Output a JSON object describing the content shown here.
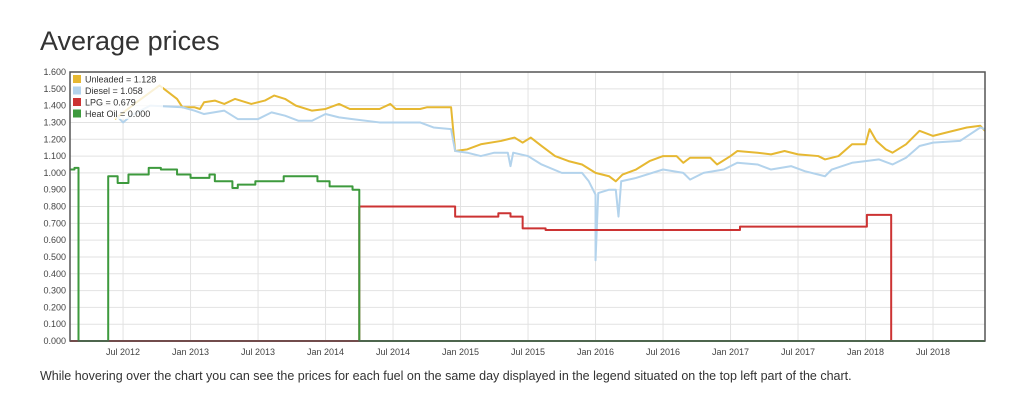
{
  "title": "Average prices",
  "caption": "While hovering over the chart you can see the prices for each fuel on the same day displayed in the legend situated on the top left part of the chart.",
  "chart_data": {
    "type": "line",
    "title": "Average prices",
    "xlabel": "",
    "ylabel": "",
    "xlim": [
      2012.107,
      2018.885
    ],
    "ylim": [
      0,
      1.6
    ],
    "grid": true,
    "legend_position": "top-left",
    "yticks": [
      "0.000",
      "0.100",
      "0.200",
      "0.300",
      "0.400",
      "0.500",
      "0.600",
      "0.700",
      "0.800",
      "0.900",
      "1.000",
      "1.100",
      "1.200",
      "1.300",
      "1.400",
      "1.500",
      "1.600"
    ],
    "xticks": [
      {
        "x": 2012.5,
        "label": "Jul 2012"
      },
      {
        "x": 2013.0,
        "label": "Jan 2013"
      },
      {
        "x": 2013.5,
        "label": "Jul 2013"
      },
      {
        "x": 2014.0,
        "label": "Jan 2014"
      },
      {
        "x": 2014.5,
        "label": "Jul 2014"
      },
      {
        "x": 2015.0,
        "label": "Jan 2015"
      },
      {
        "x": 2015.5,
        "label": "Jul 2015"
      },
      {
        "x": 2016.0,
        "label": "Jan 2016"
      },
      {
        "x": 2016.5,
        "label": "Jul 2016"
      },
      {
        "x": 2017.0,
        "label": "Jan 2017"
      },
      {
        "x": 2017.5,
        "label": "Jul 2017"
      },
      {
        "x": 2018.0,
        "label": "Jan 2018"
      },
      {
        "x": 2018.5,
        "label": "Jul 2018"
      }
    ],
    "series": [
      {
        "name": "Unleaded",
        "legend": "Unleaded = 1.128",
        "color": "#e6b832",
        "step": false,
        "points": [
          [
            2012.44,
            1.32
          ],
          [
            2012.6,
            1.42
          ],
          [
            2012.77,
            1.52
          ],
          [
            2012.9,
            1.44
          ],
          [
            2012.94,
            1.39
          ],
          [
            2013.03,
            1.39
          ],
          [
            2013.07,
            1.38
          ],
          [
            2013.1,
            1.42
          ],
          [
            2013.18,
            1.43
          ],
          [
            2013.25,
            1.41
          ],
          [
            2013.33,
            1.44
          ],
          [
            2013.45,
            1.41
          ],
          [
            2013.55,
            1.43
          ],
          [
            2013.62,
            1.46
          ],
          [
            2013.7,
            1.44
          ],
          [
            2013.78,
            1.4
          ],
          [
            2013.9,
            1.37
          ],
          [
            2014.0,
            1.38
          ],
          [
            2014.1,
            1.41
          ],
          [
            2014.18,
            1.38
          ],
          [
            2014.4,
            1.38
          ],
          [
            2014.48,
            1.41
          ],
          [
            2014.52,
            1.38
          ],
          [
            2014.7,
            1.38
          ],
          [
            2014.75,
            1.39
          ],
          [
            2014.93,
            1.39
          ],
          [
            2014.96,
            1.13
          ],
          [
            2015.05,
            1.14
          ],
          [
            2015.15,
            1.17
          ],
          [
            2015.3,
            1.19
          ],
          [
            2015.4,
            1.21
          ],
          [
            2015.46,
            1.18
          ],
          [
            2015.52,
            1.21
          ],
          [
            2015.6,
            1.16
          ],
          [
            2015.7,
            1.1
          ],
          [
            2015.8,
            1.07
          ],
          [
            2015.9,
            1.05
          ],
          [
            2016.0,
            1.0
          ],
          [
            2016.1,
            0.98
          ],
          [
            2016.15,
            0.95
          ],
          [
            2016.2,
            0.99
          ],
          [
            2016.3,
            1.02
          ],
          [
            2016.4,
            1.07
          ],
          [
            2016.5,
            1.1
          ],
          [
            2016.6,
            1.1
          ],
          [
            2016.65,
            1.06
          ],
          [
            2016.7,
            1.09
          ],
          [
            2016.85,
            1.09
          ],
          [
            2016.9,
            1.05
          ],
          [
            2017.0,
            1.1
          ],
          [
            2017.05,
            1.13
          ],
          [
            2017.2,
            1.12
          ],
          [
            2017.3,
            1.11
          ],
          [
            2017.4,
            1.13
          ],
          [
            2017.5,
            1.11
          ],
          [
            2017.65,
            1.1
          ],
          [
            2017.7,
            1.08
          ],
          [
            2017.8,
            1.1
          ],
          [
            2017.9,
            1.17
          ],
          [
            2018.0,
            1.17
          ],
          [
            2018.03,
            1.26
          ],
          [
            2018.08,
            1.19
          ],
          [
            2018.15,
            1.14
          ],
          [
            2018.2,
            1.12
          ],
          [
            2018.3,
            1.17
          ],
          [
            2018.4,
            1.25
          ],
          [
            2018.5,
            1.22
          ],
          [
            2018.6,
            1.24
          ],
          [
            2018.75,
            1.27
          ],
          [
            2018.85,
            1.28
          ],
          [
            2018.885,
            1.25
          ]
        ]
      },
      {
        "name": "Diesel",
        "legend": "Diesel = 1.058",
        "color": "#b3d3ec",
        "step": false,
        "points": [
          [
            2012.44,
            1.35
          ],
          [
            2012.5,
            1.3
          ],
          [
            2012.56,
            1.34
          ],
          [
            2012.7,
            1.4
          ],
          [
            2012.94,
            1.39
          ],
          [
            2013.03,
            1.37
          ],
          [
            2013.1,
            1.35
          ],
          [
            2013.25,
            1.37
          ],
          [
            2013.35,
            1.32
          ],
          [
            2013.5,
            1.32
          ],
          [
            2013.6,
            1.36
          ],
          [
            2013.7,
            1.34
          ],
          [
            2013.8,
            1.31
          ],
          [
            2013.9,
            1.31
          ],
          [
            2014.0,
            1.35
          ],
          [
            2014.1,
            1.33
          ],
          [
            2014.2,
            1.32
          ],
          [
            2014.4,
            1.3
          ],
          [
            2014.7,
            1.3
          ],
          [
            2014.8,
            1.27
          ],
          [
            2014.93,
            1.26
          ],
          [
            2014.96,
            1.13
          ],
          [
            2015.05,
            1.12
          ],
          [
            2015.15,
            1.1
          ],
          [
            2015.25,
            1.12
          ],
          [
            2015.35,
            1.12
          ],
          [
            2015.37,
            1.04
          ],
          [
            2015.39,
            1.12
          ],
          [
            2015.5,
            1.1
          ],
          [
            2015.6,
            1.05
          ],
          [
            2015.75,
            1.0
          ],
          [
            2015.9,
            1.0
          ],
          [
            2015.95,
            0.95
          ],
          [
            2016.0,
            0.87
          ],
          [
            2016.0,
            0.48
          ],
          [
            2016.02,
            0.88
          ],
          [
            2016.1,
            0.9
          ],
          [
            2016.15,
            0.9
          ],
          [
            2016.17,
            0.74
          ],
          [
            2016.19,
            0.95
          ],
          [
            2016.3,
            0.97
          ],
          [
            2016.5,
            1.02
          ],
          [
            2016.65,
            1.0
          ],
          [
            2016.7,
            0.96
          ],
          [
            2016.8,
            1.0
          ],
          [
            2016.95,
            1.02
          ],
          [
            2017.05,
            1.06
          ],
          [
            2017.2,
            1.05
          ],
          [
            2017.3,
            1.02
          ],
          [
            2017.45,
            1.04
          ],
          [
            2017.55,
            1.01
          ],
          [
            2017.7,
            0.98
          ],
          [
            2017.75,
            1.02
          ],
          [
            2017.9,
            1.06
          ],
          [
            2018.0,
            1.07
          ],
          [
            2018.1,
            1.08
          ],
          [
            2018.2,
            1.05
          ],
          [
            2018.3,
            1.09
          ],
          [
            2018.4,
            1.16
          ],
          [
            2018.5,
            1.18
          ],
          [
            2018.7,
            1.19
          ],
          [
            2018.85,
            1.27
          ],
          [
            2018.885,
            1.26
          ]
        ]
      },
      {
        "name": "LPG",
        "legend": "LPG = 0.679",
        "color": "#cc3333",
        "step": true,
        "points": [
          [
            2012.107,
            0
          ],
          [
            2014.25,
            0.8
          ],
          [
            2014.96,
            0.74
          ],
          [
            2015.28,
            0.76
          ],
          [
            2015.37,
            0.74
          ],
          [
            2015.46,
            0.67
          ],
          [
            2015.63,
            0.66
          ],
          [
            2017.07,
            0.68
          ],
          [
            2018.01,
            0.75
          ],
          [
            2018.19,
            0
          ],
          [
            2018.885,
            0
          ]
        ]
      },
      {
        "name": "Heat Oil",
        "legend": "Heat Oil = 0.000",
        "color": "#3d9a3d",
        "step": true,
        "points": [
          [
            2012.107,
            1.02
          ],
          [
            2012.14,
            1.03
          ],
          [
            2012.17,
            0
          ],
          [
            2012.39,
            0.98
          ],
          [
            2012.46,
            0.94
          ],
          [
            2012.54,
            0.99
          ],
          [
            2012.69,
            1.03
          ],
          [
            2012.78,
            1.02
          ],
          [
            2012.9,
            0.99
          ],
          [
            2013.0,
            0.97
          ],
          [
            2013.14,
            0.99
          ],
          [
            2013.18,
            0.95
          ],
          [
            2013.31,
            0.91
          ],
          [
            2013.35,
            0.93
          ],
          [
            2013.48,
            0.95
          ],
          [
            2013.69,
            0.98
          ],
          [
            2013.94,
            0.95
          ],
          [
            2014.03,
            0.92
          ],
          [
            2014.2,
            0.9
          ],
          [
            2014.25,
            0
          ],
          [
            2018.885,
            0
          ]
        ]
      }
    ]
  }
}
